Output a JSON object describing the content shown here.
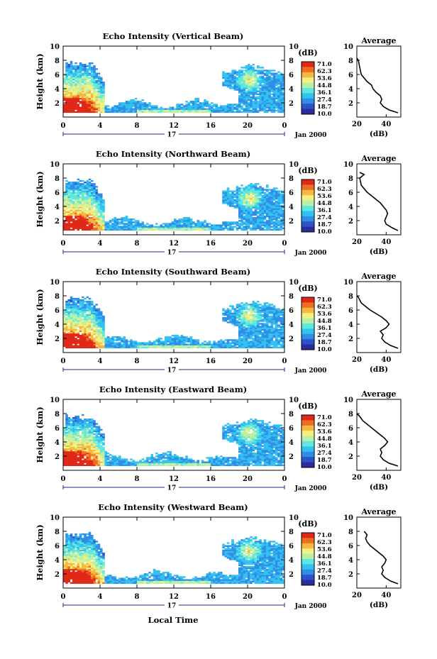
{
  "figure": {
    "xlabel": "Local Time",
    "x_ticks": [
      "0",
      "4",
      "8",
      "12",
      "16",
      "20",
      "0"
    ],
    "date_mark": "17",
    "date_label": "Jan 2000",
    "ylabel": "Height (km)",
    "y_ticks": [
      "10",
      "8",
      "6",
      "4",
      "2"
    ],
    "cbar_unit": "(dB)",
    "cbar_ticks": [
      "71.0",
      "62.3",
      "53.6",
      "44.8",
      "36.1",
      "27.4",
      "18.7",
      "10.0"
    ],
    "profile_title": "Average",
    "profile_xlabel": "(dB)",
    "profile_x_ticks": [
      "20",
      "40"
    ]
  },
  "colorscale": [
    "#2c2c9c",
    "#2e52c8",
    "#2f8ee6",
    "#33c2f0",
    "#5ee8e0",
    "#b8f0a8",
    "#f4f080",
    "#f6b840",
    "#f06c22",
    "#e02818"
  ],
  "chart_data": [
    {
      "type": "heatmap",
      "title": "Echo Intensity (Vertical Beam)",
      "xlabel": "Local Time",
      "ylabel": "Height (km)",
      "xlim": [
        0,
        24
      ],
      "ylim": [
        0,
        10
      ],
      "zlim": [
        10.0,
        71.0
      ],
      "zunit": "dB",
      "inset_profile": {
        "type": "line",
        "title": "Average",
        "xlabel": "(dB)",
        "x": [
          48,
          42,
          38,
          36,
          37,
          36,
          33,
          31,
          30,
          27,
          25,
          23,
          22,
          21,
          20
        ],
        "y": [
          0.6,
          1.0,
          1.5,
          2.0,
          2.5,
          3.0,
          3.5,
          4.0,
          4.5,
          5.0,
          5.5,
          6.0,
          7.0,
          8.0,
          8.3
        ],
        "xlim": [
          20,
          50
        ],
        "ylim": [
          0,
          10
        ]
      }
    },
    {
      "type": "heatmap",
      "title": "Echo Intensity (Northward Beam)",
      "xlabel": "Local Time",
      "ylabel": "Height (km)",
      "xlim": [
        0,
        24
      ],
      "ylim": [
        0,
        10
      ],
      "zlim": [
        10.0,
        71.0
      ],
      "zunit": "dB",
      "inset_profile": {
        "type": "line",
        "title": "Average",
        "xlabel": "(dB)",
        "x": [
          48,
          44,
          40,
          39,
          40,
          41,
          40,
          38,
          36,
          33,
          30,
          27,
          25,
          23,
          22,
          25,
          22
        ],
        "y": [
          0.6,
          1.0,
          1.5,
          2.0,
          2.5,
          3.0,
          3.5,
          4.0,
          4.5,
          5.0,
          5.5,
          6.0,
          6.5,
          7.0,
          8.0,
          8.5,
          8.8
        ],
        "xlim": [
          20,
          50
        ],
        "ylim": [
          0,
          10
        ]
      }
    },
    {
      "type": "heatmap",
      "title": "Echo Intensity (Southward Beam)",
      "xlabel": "Local Time",
      "ylabel": "Height (km)",
      "xlim": [
        0,
        24
      ],
      "ylim": [
        0,
        10
      ],
      "zlim": [
        10.0,
        71.0
      ],
      "zunit": "dB",
      "inset_profile": {
        "type": "line",
        "title": "Average",
        "xlabel": "(dB)",
        "x": [
          48,
          43,
          39,
          37,
          38,
          36,
          40,
          42,
          40,
          37,
          33,
          29,
          26,
          23,
          21,
          20
        ],
        "y": [
          0.6,
          1.0,
          1.5,
          2.0,
          2.5,
          3.0,
          3.5,
          4.0,
          4.5,
          5.0,
          5.5,
          6.0,
          6.5,
          7.0,
          7.8,
          8.0
        ],
        "xlim": [
          20,
          50
        ],
        "ylim": [
          0,
          10
        ]
      }
    },
    {
      "type": "heatmap",
      "title": "Echo Intensity (Eastward Beam)",
      "xlabel": "Local Time",
      "ylabel": "Height (km)",
      "xlim": [
        0,
        24
      ],
      "ylim": [
        0,
        10
      ],
      "zlim": [
        10.0,
        71.0
      ],
      "zunit": "dB",
      "inset_profile": {
        "type": "line",
        "title": "Average",
        "xlabel": "(dB)",
        "x": [
          48,
          42,
          38,
          36,
          37,
          36,
          39,
          41,
          39,
          36,
          33,
          30,
          27,
          24,
          22,
          20
        ],
        "y": [
          0.6,
          1.0,
          1.5,
          2.0,
          2.5,
          3.0,
          3.5,
          4.0,
          4.5,
          5.0,
          5.5,
          6.0,
          6.5,
          7.0,
          7.6,
          8.0
        ],
        "xlim": [
          20,
          50
        ],
        "ylim": [
          0,
          10
        ]
      }
    },
    {
      "type": "heatmap",
      "title": "Echo Intensity (Westward Beam)",
      "xlabel": "Local Time",
      "ylabel": "Height (km)",
      "xlim": [
        0,
        24
      ],
      "ylim": [
        0,
        10
      ],
      "zlim": [
        10.0,
        71.0
      ],
      "zunit": "dB",
      "inset_profile": {
        "type": "line",
        "title": "Average",
        "xlabel": "(dB)",
        "x": [
          48,
          43,
          39,
          37,
          38,
          37,
          39,
          40,
          38,
          35,
          32,
          29,
          27,
          26,
          27,
          25
        ],
        "y": [
          0.6,
          1.0,
          1.5,
          2.0,
          2.5,
          3.0,
          3.5,
          4.0,
          4.5,
          5.0,
          5.5,
          6.0,
          6.5,
          7.0,
          7.5,
          8.0
        ],
        "xlim": [
          20,
          50
        ],
        "ylim": [
          0,
          10
        ]
      }
    }
  ]
}
